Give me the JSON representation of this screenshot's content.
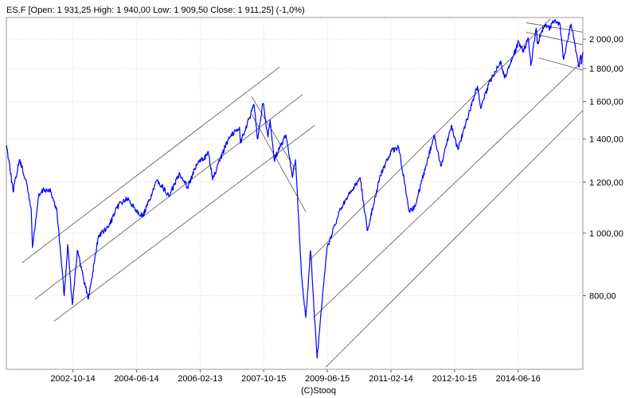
{
  "header": {
    "text": "ES.F [Open: 1 931,25  High: 1 940,00  Low: 1 909,50  Close: 1 911,25] (-1,0%)"
  },
  "footer": {
    "copyright": "(C)Stooq"
  },
  "chart_data": {
    "type": "line",
    "title": "ES.F [Open: 1 931,25  High: 1 940,00  Low: 1 909,50  Close: 1 911,25] (-1,0%)",
    "y_scale": "log",
    "ylim": [
      615,
      2160
    ],
    "grid": true,
    "y_ticks": [
      {
        "value": 800,
        "label": "800,00"
      },
      {
        "value": 1000,
        "label": "1 000,00"
      },
      {
        "value": 1200,
        "label": "1 200,00"
      },
      {
        "value": 1400,
        "label": "1 400,00"
      },
      {
        "value": 1600,
        "label": "1 600,00"
      },
      {
        "value": 1800,
        "label": "1 800,00"
      },
      {
        "value": 2000,
        "label": "2 000,00"
      }
    ],
    "x_ticks": [
      {
        "date": "2002-10-14",
        "label": "2002-10-14"
      },
      {
        "date": "2004-06-14",
        "label": "2004-06-14"
      },
      {
        "date": "2006-02-13",
        "label": "2006-02-13"
      },
      {
        "date": "2007-10-15",
        "label": "2007-10-15"
      },
      {
        "date": "2009-06-15",
        "label": "2009-06-15"
      },
      {
        "date": "2011-02-14",
        "label": "2011-02-14"
      },
      {
        "date": "2012-10-15",
        "label": "2012-10-15"
      },
      {
        "date": "2014-06-16",
        "label": "2014-06-16"
      }
    ],
    "xlim": [
      "2001-01-15",
      "2016-02-25"
    ],
    "series": [
      {
        "color": "#0000ff",
        "points": [
          [
            "2001-01-15",
            1370
          ],
          [
            "2001-02-15",
            1280
          ],
          [
            "2001-03-20",
            1160
          ],
          [
            "2001-05-20",
            1300
          ],
          [
            "2001-07-20",
            1210
          ],
          [
            "2001-09-10",
            1090
          ],
          [
            "2001-09-21",
            950
          ],
          [
            "2001-11-20",
            1140
          ],
          [
            "2002-01-10",
            1170
          ],
          [
            "2002-03-15",
            1160
          ],
          [
            "2002-05-15",
            1080
          ],
          [
            "2002-07-23",
            800
          ],
          [
            "2002-08-25",
            960
          ],
          [
            "2002-10-09",
            775
          ],
          [
            "2002-11-25",
            940
          ],
          [
            "2003-03-11",
            790
          ],
          [
            "2003-06-15",
            990
          ],
          [
            "2003-09-15",
            1020
          ],
          [
            "2003-12-31",
            1110
          ],
          [
            "2004-03-15",
            1130
          ],
          [
            "2004-08-12",
            1060
          ],
          [
            "2004-12-31",
            1210
          ],
          [
            "2005-04-20",
            1140
          ],
          [
            "2005-08-01",
            1240
          ],
          [
            "2005-10-15",
            1180
          ],
          [
            "2006-01-15",
            1280
          ],
          [
            "2006-05-05",
            1330
          ],
          [
            "2006-06-13",
            1210
          ],
          [
            "2006-11-15",
            1410
          ],
          [
            "2007-02-25",
            1460
          ],
          [
            "2007-03-05",
            1380
          ],
          [
            "2007-07-15",
            1580
          ],
          [
            "2007-08-15",
            1400
          ],
          [
            "2007-10-09",
            1590
          ],
          [
            "2007-11-25",
            1410
          ],
          [
            "2007-12-15",
            1500
          ],
          [
            "2008-01-22",
            1300
          ],
          [
            "2008-05-15",
            1420
          ],
          [
            "2008-07-15",
            1220
          ],
          [
            "2008-08-15",
            1300
          ],
          [
            "2008-10-10",
            860
          ],
          [
            "2008-11-20",
            740
          ],
          [
            "2009-01-05",
            940
          ],
          [
            "2009-03-09",
            640
          ],
          [
            "2009-06-12",
            950
          ],
          [
            "2009-10-20",
            1090
          ],
          [
            "2010-01-15",
            1150
          ],
          [
            "2010-04-25",
            1220
          ],
          [
            "2010-07-02",
            1010
          ],
          [
            "2010-11-05",
            1230
          ],
          [
            "2011-02-18",
            1340
          ],
          [
            "2011-04-29",
            1360
          ],
          [
            "2011-08-09",
            1080
          ],
          [
            "2011-10-04",
            1100
          ],
          [
            "2012-04-02",
            1420
          ],
          [
            "2012-06-04",
            1270
          ],
          [
            "2012-09-14",
            1470
          ],
          [
            "2012-11-15",
            1350
          ],
          [
            "2013-05-21",
            1690
          ],
          [
            "2013-06-24",
            1560
          ],
          [
            "2013-09-18",
            1720
          ],
          [
            "2013-12-31",
            1850
          ],
          [
            "2014-02-05",
            1740
          ],
          [
            "2014-06-20",
            1980
          ],
          [
            "2014-08-07",
            1910
          ],
          [
            "2014-09-19",
            2010
          ],
          [
            "2014-10-15",
            1820
          ],
          [
            "2014-12-05",
            2080
          ],
          [
            "2014-12-16",
            1970
          ],
          [
            "2015-03-02",
            2110
          ],
          [
            "2015-04-15",
            2080
          ],
          [
            "2015-05-20",
            2130
          ],
          [
            "2015-07-20",
            2110
          ],
          [
            "2015-08-25",
            1860
          ],
          [
            "2015-11-04",
            2110
          ],
          [
            "2016-01-20",
            1810
          ],
          [
            "2016-02-05",
            1890
          ],
          [
            "2016-02-12",
            1830
          ],
          [
            "2016-02-25",
            1911
          ]
        ]
      }
    ],
    "trendlines": [
      [
        [
          "2001-06-15",
          900
        ],
        [
          "2008-03-15",
          1810
        ]
      ],
      [
        [
          "2001-10-15",
          790
        ],
        [
          "2008-10-20",
          1640
        ]
      ],
      [
        [
          "2002-04-15",
          730
        ],
        [
          "2009-02-15",
          1470
        ]
      ],
      [
        [
          "2007-06-20",
          1630
        ],
        [
          "2008-08-20",
          1250
        ]
      ],
      [
        [
          "2007-06-20",
          1530
        ],
        [
          "2008-11-20",
          1080
        ]
      ],
      [
        [
          "2009-01-01",
          910
        ],
        [
          "2015-04-20",
          2150
        ]
      ],
      [
        [
          "2009-02-01",
          740
        ],
        [
          "2016-02-25",
          1850
        ]
      ],
      [
        [
          "2009-06-01",
          620
        ],
        [
          "2016-02-25",
          1550
        ]
      ],
      [
        [
          "2014-09-01",
          2120
        ],
        [
          "2016-02-25",
          2050
        ]
      ],
      [
        [
          "2014-09-01",
          2050
        ],
        [
          "2016-02-25",
          1960
        ]
      ],
      [
        [
          "2015-01-01",
          1870
        ],
        [
          "2016-02-25",
          1790
        ]
      ]
    ]
  }
}
